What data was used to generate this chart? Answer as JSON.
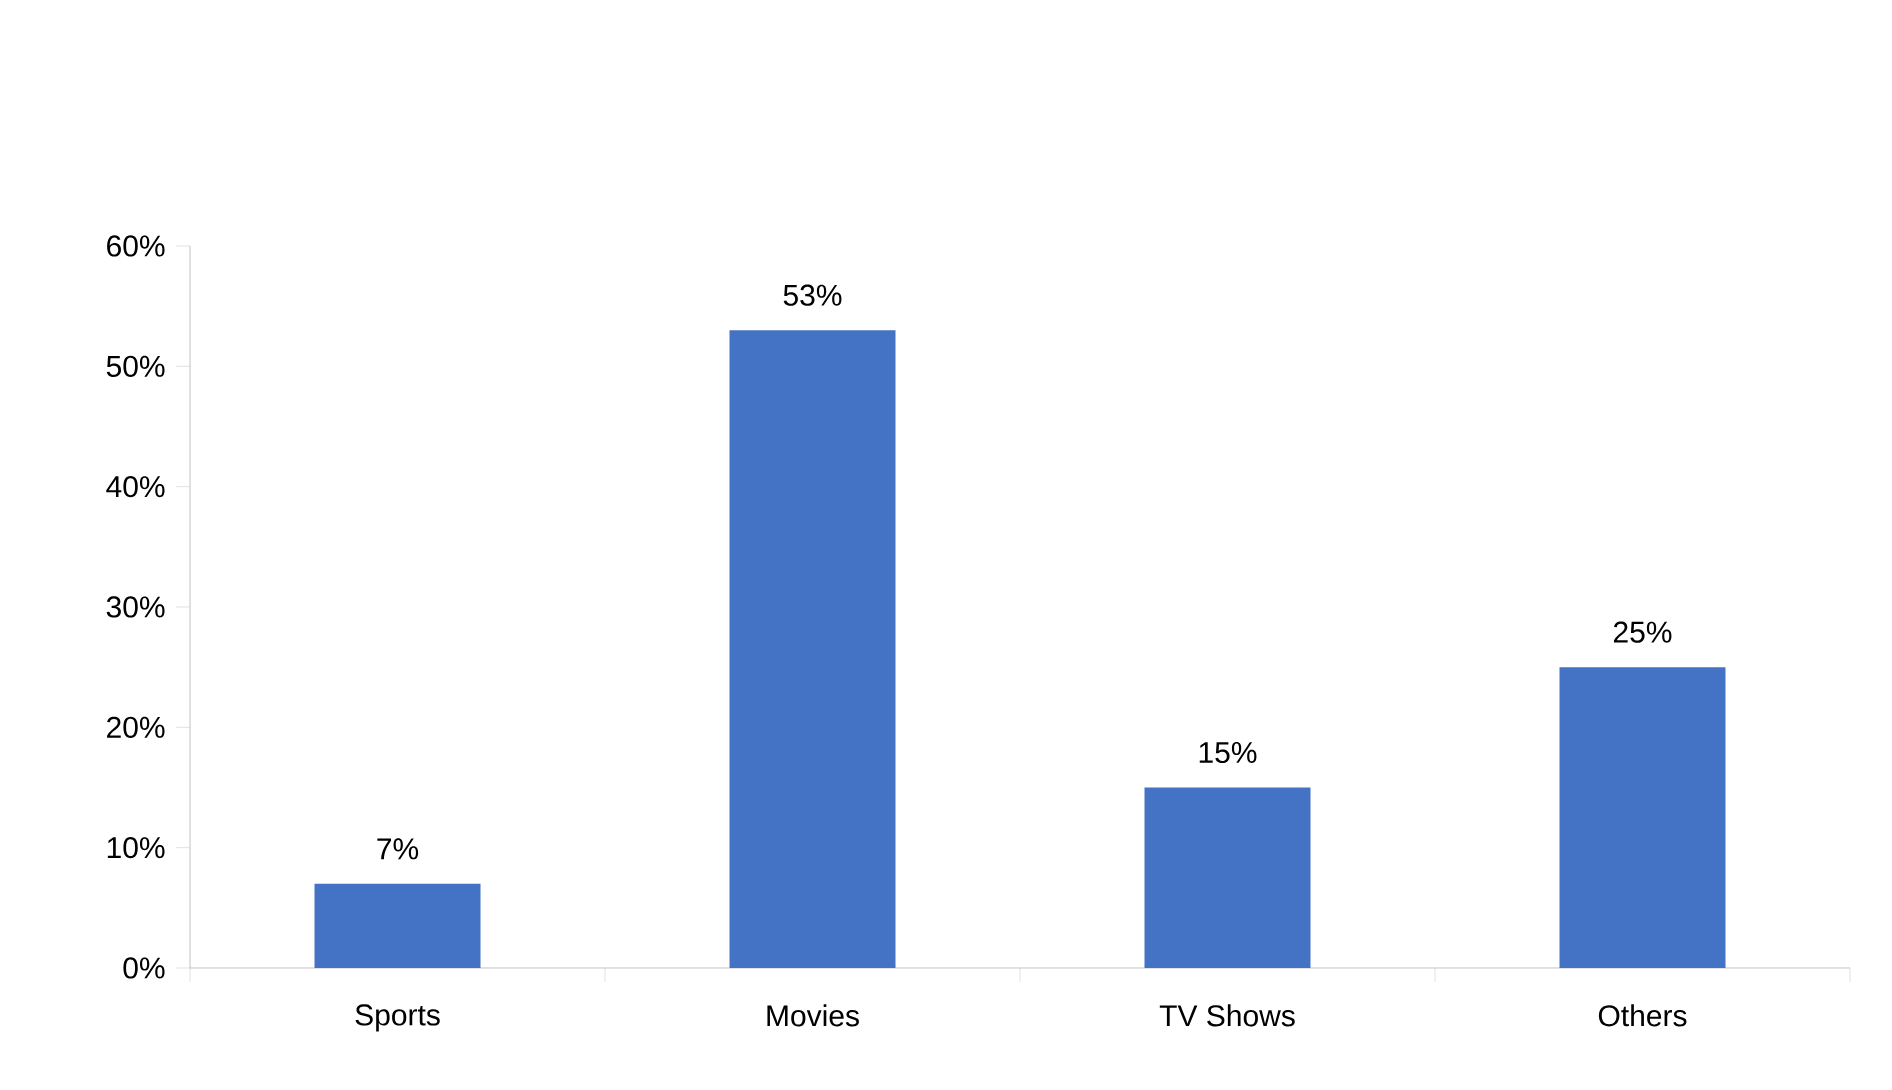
{
  "chart_data": {
    "type": "bar",
    "categories": [
      "Sports",
      "Movies",
      "TV Shows",
      "Others"
    ],
    "values": [
      7,
      53,
      15,
      25
    ],
    "color": "#4472c4",
    "value_labels": [
      "7%",
      "53%",
      "15%",
      "25%"
    ],
    "ylim": [
      0,
      60
    ],
    "yticks": [
      {
        "value": 0,
        "label": "0%"
      },
      {
        "value": 10,
        "label": "10%"
      },
      {
        "value": 20,
        "label": "20%"
      },
      {
        "value": 30,
        "label": "30%"
      },
      {
        "value": 40,
        "label": "40%"
      },
      {
        "value": 50,
        "label": "50%"
      },
      {
        "value": 60,
        "label": "60%"
      }
    ],
    "grid": false
  }
}
